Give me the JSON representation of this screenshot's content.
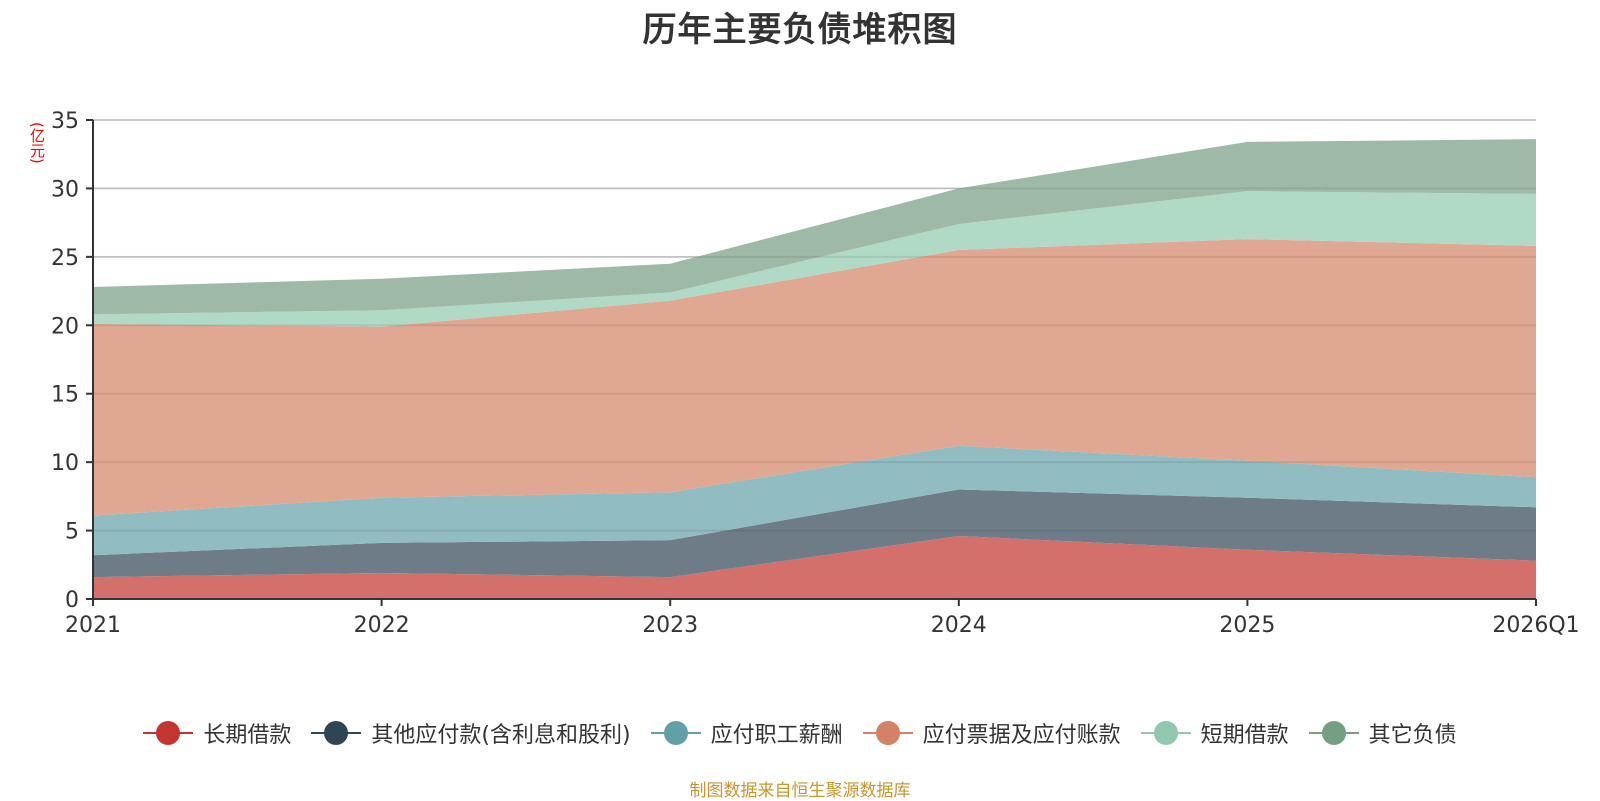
{
  "chart_data": {
    "type": "area",
    "stacked": true,
    "title": "历年主要负债堆积图",
    "ylabel": "(亿元)",
    "xlabel": "",
    "categories": [
      "2021",
      "2022",
      "2023",
      "2024",
      "2025",
      "2026Q1"
    ],
    "ylim": [
      0,
      35
    ],
    "yticks": [
      0,
      5,
      10,
      15,
      20,
      25,
      30,
      35
    ],
    "grid": true,
    "legend_position": "bottom",
    "series": [
      {
        "name": "长期借款",
        "color": "#c23531",
        "fill": "#d4706c",
        "values": [
          1.6,
          1.9,
          1.6,
          4.6,
          3.6,
          2.8
        ]
      },
      {
        "name": "其他应付款(含利息和股利)",
        "color": "#2f4554",
        "fill": "#6e7c87",
        "values": [
          1.6,
          2.2,
          2.7,
          3.4,
          3.8,
          3.9
        ]
      },
      {
        "name": "应付职工薪酬",
        "color": "#61a0a8",
        "fill": "#91bcc2",
        "values": [
          2.9,
          3.3,
          3.5,
          3.2,
          2.7,
          2.2
        ]
      },
      {
        "name": "应付票据及应付账款",
        "color": "#d48265",
        "fill": "#e0a792",
        "values": [
          14.0,
          12.5,
          14.0,
          14.3,
          16.2,
          16.9
        ]
      },
      {
        "name": "短期借款",
        "color": "#91c7ae",
        "fill": "#b0d9c6",
        "values": [
          0.7,
          1.2,
          0.6,
          1.9,
          3.5,
          3.8
        ]
      },
      {
        "name": "其它负债",
        "color": "#749f83",
        "fill": "#9eb9a6",
        "values": [
          2.0,
          2.3,
          2.1,
          2.6,
          3.6,
          4.0
        ]
      }
    ]
  },
  "header": {
    "title": "历年主要负债堆积图",
    "unit": "(亿元)"
  },
  "footer": {
    "source": "制图数据来自恒生聚源数据库"
  }
}
